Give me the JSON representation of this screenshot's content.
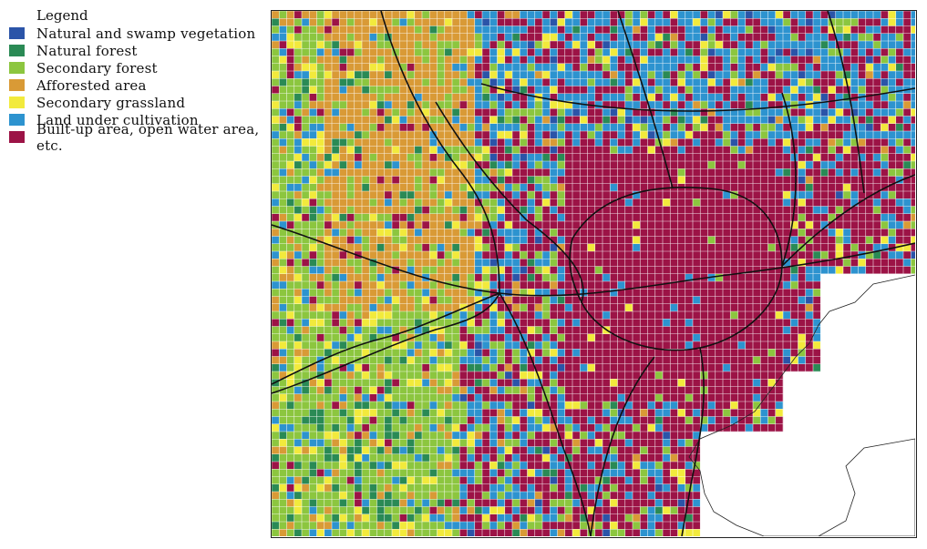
{
  "legend": {
    "title": "Legend",
    "items": [
      {
        "label": "Natural and swamp vegetation",
        "color": "#2b54a8"
      },
      {
        "label": "Natural forest",
        "color": "#2a8a55"
      },
      {
        "label": "Secondary forest",
        "color": "#8cc63f"
      },
      {
        "label": "Afforested area",
        "color": "#d99a36"
      },
      {
        "label": "Secondary grassland",
        "color": "#f2ea3c"
      },
      {
        "label": "Land under cultivation",
        "color": "#2d93cf"
      },
      {
        "label": "Built-up area, open water area, etc.",
        "color": "#9c1346"
      }
    ]
  },
  "map": {
    "grid_lines_color": "#ffffff",
    "road_color": "#111111",
    "sea_color": "#ffffff"
  }
}
